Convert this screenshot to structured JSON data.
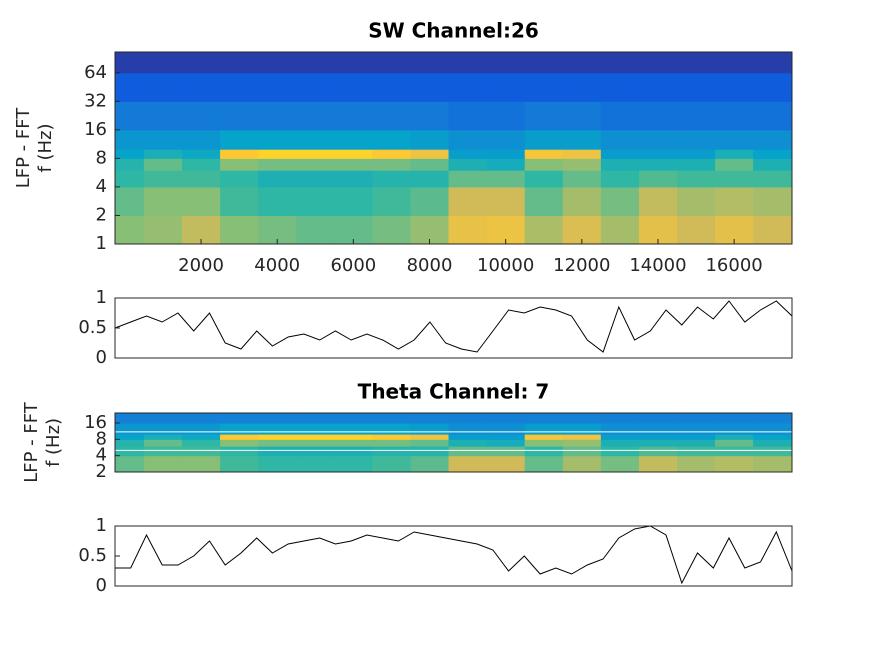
{
  "chart_data": [
    {
      "type": "heatmap",
      "title": "SW Channel:26",
      "ylabel": [
        "LFP - FFT",
        "f (Hz)"
      ],
      "yscale": "log",
      "ylim": [
        1,
        106
      ],
      "yticks": [
        1,
        2,
        4,
        8,
        16,
        32,
        64
      ],
      "xlim": [
        -260,
        17520
      ],
      "xticks": [
        2000,
        4000,
        6000,
        8000,
        10000,
        12000,
        14000,
        16000
      ],
      "xbins": [
        -260,
        500,
        1500,
        2500,
        3500,
        4500,
        5500,
        6500,
        7500,
        8500,
        9500,
        10500,
        11500,
        12500,
        13500,
        14500,
        15500,
        16500,
        17520
      ],
      "ybins": [
        1,
        2,
        4,
        6,
        8,
        10,
        16,
        32,
        64,
        106
      ],
      "clim": [
        0.2,
        1
      ],
      "colormap": [
        "#352a87",
        "#0f5cdd",
        "#1481d6",
        "#06a4ca",
        "#2eb7a4",
        "#87bf77",
        "#d1bb59",
        "#fec832",
        "#f9fb0e"
      ],
      "values": [
        [
          0.7,
          0.72,
          0.78,
          0.7,
          0.68,
          0.66,
          0.66,
          0.68,
          0.72,
          0.85,
          0.86,
          0.75,
          0.82,
          0.74,
          0.84,
          0.8,
          0.84,
          0.8
        ],
        [
          0.66,
          0.7,
          0.7,
          0.62,
          0.6,
          0.6,
          0.6,
          0.62,
          0.65,
          0.8,
          0.8,
          0.66,
          0.74,
          0.68,
          0.78,
          0.74,
          0.76,
          0.74
        ],
        [
          0.6,
          0.62,
          0.62,
          0.6,
          0.56,
          0.56,
          0.56,
          0.58,
          0.58,
          0.66,
          0.66,
          0.6,
          0.66,
          0.6,
          0.64,
          0.62,
          0.62,
          0.62
        ],
        [
          0.58,
          0.66,
          0.6,
          0.7,
          0.68,
          0.68,
          0.68,
          0.68,
          0.66,
          0.56,
          0.54,
          0.7,
          0.72,
          0.56,
          0.56,
          0.56,
          0.66,
          0.56
        ],
        [
          0.5,
          0.55,
          0.52,
          0.9,
          0.92,
          0.92,
          0.92,
          0.9,
          0.86,
          0.48,
          0.48,
          0.88,
          0.86,
          0.48,
          0.48,
          0.48,
          0.55,
          0.5
        ],
        [
          0.46,
          0.46,
          0.46,
          0.5,
          0.5,
          0.5,
          0.5,
          0.5,
          0.48,
          0.44,
          0.44,
          0.48,
          0.48,
          0.44,
          0.44,
          0.44,
          0.44,
          0.44
        ],
        [
          0.38,
          0.38,
          0.38,
          0.38,
          0.38,
          0.38,
          0.38,
          0.38,
          0.38,
          0.36,
          0.36,
          0.38,
          0.38,
          0.36,
          0.36,
          0.36,
          0.36,
          0.36
        ],
        [
          0.3,
          0.3,
          0.3,
          0.3,
          0.3,
          0.3,
          0.3,
          0.3,
          0.3,
          0.3,
          0.3,
          0.3,
          0.3,
          0.3,
          0.3,
          0.3,
          0.3,
          0.3
        ],
        [
          0.24,
          0.24,
          0.24,
          0.24,
          0.24,
          0.24,
          0.24,
          0.24,
          0.24,
          0.24,
          0.24,
          0.24,
          0.24,
          0.24,
          0.24,
          0.24,
          0.24,
          0.24
        ]
      ]
    },
    {
      "type": "line",
      "ylim": [
        0,
        1
      ],
      "yticks": [
        0,
        0.5,
        1
      ],
      "xlim": [
        0,
        17200
      ],
      "color": "#000000",
      "x": [
        0,
        400,
        800,
        1200,
        1600,
        2000,
        2400,
        2800,
        3200,
        3600,
        4000,
        4400,
        4800,
        5200,
        5600,
        6000,
        6400,
        6800,
        7200,
        7600,
        8000,
        8400,
        8800,
        9200,
        9600,
        10000,
        10400,
        10800,
        11200,
        11600,
        12000,
        12400,
        12800,
        13200,
        13600,
        14000,
        14400,
        14800,
        15200,
        15600,
        16000,
        16400,
        16800,
        17200
      ],
      "values": [
        0.5,
        0.6,
        0.7,
        0.6,
        0.75,
        0.45,
        0.75,
        0.25,
        0.15,
        0.45,
        0.2,
        0.35,
        0.4,
        0.3,
        0.45,
        0.3,
        0.4,
        0.3,
        0.15,
        0.3,
        0.6,
        0.25,
        0.15,
        0.1,
        0.45,
        0.8,
        0.75,
        0.85,
        0.8,
        0.7,
        0.3,
        0.1,
        0.85,
        0.3,
        0.45,
        0.8,
        0.55,
        0.85,
        0.65,
        0.95,
        0.6,
        0.8,
        0.95,
        0.7
      ]
    },
    {
      "type": "heatmap",
      "title": "Theta Channel: 7",
      "ylabel": [
        "LFP - FFT",
        "f (Hz)"
      ],
      "yscale": "log",
      "ylim": [
        2,
        24.5
      ],
      "yticks": [
        2,
        4,
        8,
        16
      ],
      "xlim": [
        -260,
        17520
      ],
      "xbins": [
        -260,
        500,
        1500,
        2500,
        3500,
        4500,
        5500,
        6500,
        7500,
        8500,
        9500,
        10500,
        11500,
        12500,
        13500,
        14500,
        15500,
        16500,
        17520
      ],
      "ybins": [
        2,
        4,
        6,
        8,
        10,
        16,
        24.5
      ],
      "clim": [
        0.2,
        1
      ],
      "colormap": [
        "#352a87",
        "#0f5cdd",
        "#1481d6",
        "#06a4ca",
        "#2eb7a4",
        "#87bf77",
        "#d1bb59",
        "#fec832",
        "#f9fb0e"
      ],
      "hlines": [
        5,
        11
      ],
      "hline_color": "#ffffff",
      "values": [
        [
          0.66,
          0.7,
          0.7,
          0.62,
          0.6,
          0.6,
          0.6,
          0.62,
          0.65,
          0.8,
          0.8,
          0.66,
          0.74,
          0.68,
          0.78,
          0.74,
          0.76,
          0.74
        ],
        [
          0.6,
          0.62,
          0.62,
          0.6,
          0.56,
          0.56,
          0.56,
          0.58,
          0.58,
          0.66,
          0.66,
          0.6,
          0.66,
          0.6,
          0.64,
          0.62,
          0.62,
          0.62
        ],
        [
          0.58,
          0.66,
          0.6,
          0.7,
          0.68,
          0.68,
          0.68,
          0.68,
          0.66,
          0.56,
          0.54,
          0.7,
          0.72,
          0.56,
          0.56,
          0.56,
          0.66,
          0.56
        ],
        [
          0.5,
          0.55,
          0.52,
          0.9,
          0.92,
          0.92,
          0.92,
          0.9,
          0.86,
          0.48,
          0.48,
          0.88,
          0.86,
          0.48,
          0.48,
          0.48,
          0.55,
          0.5
        ],
        [
          0.46,
          0.46,
          0.46,
          0.5,
          0.5,
          0.5,
          0.5,
          0.5,
          0.48,
          0.44,
          0.44,
          0.48,
          0.48,
          0.44,
          0.44,
          0.44,
          0.44,
          0.44
        ],
        [
          0.4,
          0.4,
          0.4,
          0.4,
          0.4,
          0.4,
          0.4,
          0.4,
          0.4,
          0.4,
          0.4,
          0.4,
          0.4,
          0.4,
          0.4,
          0.4,
          0.4,
          0.4
        ]
      ]
    },
    {
      "type": "line",
      "ylim": [
        0,
        1
      ],
      "yticks": [
        0,
        0.5,
        1
      ],
      "xlim": [
        0,
        17200
      ],
      "color": "#000000",
      "x": [
        0,
        400,
        800,
        1200,
        1600,
        2000,
        2400,
        2800,
        3200,
        3600,
        4000,
        4400,
        4800,
        5200,
        5600,
        6000,
        6400,
        6800,
        7200,
        7600,
        8000,
        8400,
        8800,
        9200,
        9600,
        10000,
        10400,
        10800,
        11200,
        11600,
        12000,
        12400,
        12800,
        13200,
        13600,
        14000,
        14400,
        14800,
        15200,
        15600,
        16000,
        16400,
        16800,
        17200
      ],
      "values": [
        0.3,
        0.3,
        0.85,
        0.35,
        0.35,
        0.5,
        0.75,
        0.35,
        0.55,
        0.8,
        0.55,
        0.7,
        0.75,
        0.8,
        0.7,
        0.75,
        0.85,
        0.8,
        0.75,
        0.9,
        0.85,
        0.8,
        0.75,
        0.7,
        0.6,
        0.25,
        0.5,
        0.2,
        0.3,
        0.2,
        0.35,
        0.45,
        0.8,
        0.95,
        1.0,
        0.85,
        0.05,
        0.55,
        0.3,
        0.8,
        0.3,
        0.4,
        0.9,
        0.25
      ]
    }
  ]
}
